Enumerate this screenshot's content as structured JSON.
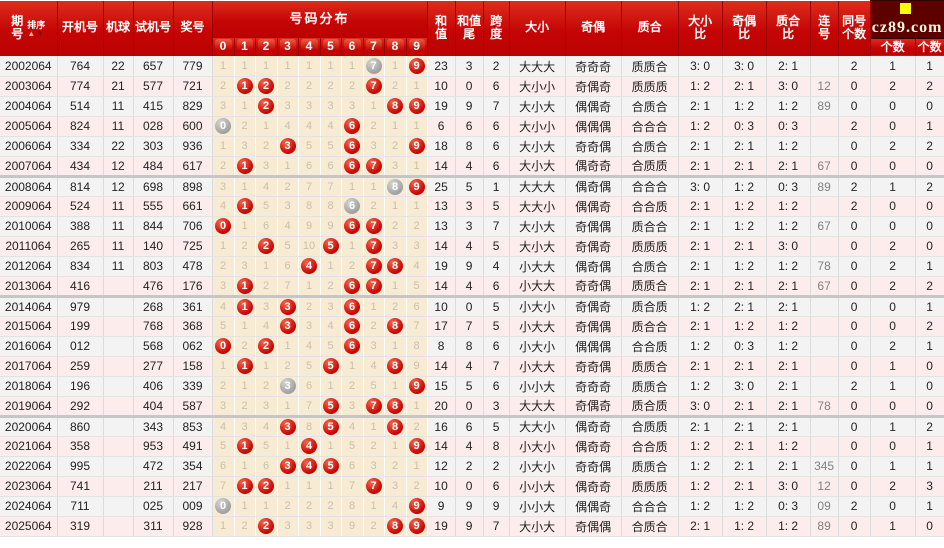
{
  "brand": {
    "logo_text": "cz89.com"
  },
  "colors": {
    "header_red": "#c50505",
    "stripe_gray": "#f3f3f3",
    "stripe_pink": "#fdecec",
    "dist_beige": "#f7ebd3",
    "ball_red": "#c90202",
    "ball_gray": "#a0a0a0",
    "logo_bg": "#5c0000",
    "logo_square": "#ffff00"
  },
  "header": {
    "qihao": [
      "期",
      "号"
    ],
    "sort_label": "排序",
    "sort_up_icon": "▲",
    "sort_down_icon": "▼",
    "kaijihao": "开机号",
    "jiqiu": "机球",
    "shijihao": "试机号",
    "jianghao": "奖号",
    "haoma_fenbu": "号码分布",
    "digits": [
      "0",
      "1",
      "2",
      "3",
      "4",
      "5",
      "6",
      "7",
      "8",
      "9"
    ],
    "hezhi": [
      "和",
      "值"
    ],
    "hezhiwei": [
      "和值",
      "尾"
    ],
    "kuadu": [
      "跨",
      "度"
    ],
    "daxiao": "大小",
    "jiou": "奇偶",
    "zhihe": "质合",
    "daxiaobi": [
      "大小",
      "比"
    ],
    "jioubi": [
      "奇偶",
      "比"
    ],
    "zhihebi": [
      "质合",
      "比"
    ],
    "lianhao": [
      "连",
      "号"
    ],
    "tonghao": [
      "同号",
      "个数"
    ],
    "geshu1": "个数",
    "geshu2": "个数"
  },
  "rows": [
    {
      "period": "2002064",
      "open": "764",
      "ball": "22",
      "test": "657",
      "win": "779",
      "dist": [
        "1",
        "1",
        "1",
        "1",
        "1",
        "1",
        "1",
        "G7",
        "1",
        "R9"
      ],
      "sum": "23",
      "sum_tail": "3",
      "span": "2",
      "size": "大大大",
      "parity": "奇奇奇",
      "prime": "质质合",
      "size_ratio": "3: 0",
      "parity_ratio": "3: 0",
      "prime_ratio": "2: 1",
      "consecutive": "",
      "same_count": "2",
      "count1": "1",
      "count2": "1",
      "group_end": false
    },
    {
      "period": "2003064",
      "open": "774",
      "ball": "21",
      "test": "577",
      "win": "721",
      "dist": [
        "2",
        "R1",
        "R2",
        "2",
        "2",
        "2",
        "2",
        "R7",
        "2",
        "1"
      ],
      "sum": "10",
      "sum_tail": "0",
      "span": "6",
      "size": "大小小",
      "parity": "奇偶奇",
      "prime": "质质质",
      "size_ratio": "1: 2",
      "parity_ratio": "2: 1",
      "prime_ratio": "3: 0",
      "consecutive": "12",
      "same_count": "0",
      "count1": "2",
      "count2": "2",
      "group_end": false
    },
    {
      "period": "2004064",
      "open": "514",
      "ball": "11",
      "test": "415",
      "win": "829",
      "dist": [
        "3",
        "1",
        "R2",
        "3",
        "3",
        "3",
        "3",
        "1",
        "R8",
        "R9"
      ],
      "sum": "19",
      "sum_tail": "9",
      "span": "7",
      "size": "大小大",
      "parity": "偶偶奇",
      "prime": "合质合",
      "size_ratio": "2: 1",
      "parity_ratio": "1: 2",
      "prime_ratio": "1: 2",
      "consecutive": "89",
      "same_count": "0",
      "count1": "0",
      "count2": "0",
      "group_end": false
    },
    {
      "period": "2005064",
      "open": "824",
      "ball": "11",
      "test": "028",
      "win": "600",
      "dist": [
        "G0",
        "2",
        "1",
        "4",
        "4",
        "4",
        "R6",
        "2",
        "1",
        "1"
      ],
      "sum": "6",
      "sum_tail": "6",
      "span": "6",
      "size": "大小小",
      "parity": "偶偶偶",
      "prime": "合合合",
      "size_ratio": "1: 2",
      "parity_ratio": "0: 3",
      "prime_ratio": "0: 3",
      "consecutive": "",
      "same_count": "2",
      "count1": "0",
      "count2": "1",
      "group_end": false
    },
    {
      "period": "2006064",
      "open": "334",
      "ball": "22",
      "test": "303",
      "win": "936",
      "dist": [
        "1",
        "3",
        "2",
        "R3",
        "5",
        "5",
        "R6",
        "3",
        "2",
        "R9"
      ],
      "sum": "18",
      "sum_tail": "8",
      "span": "6",
      "size": "大小大",
      "parity": "奇奇偶",
      "prime": "合质合",
      "size_ratio": "2: 1",
      "parity_ratio": "2: 1",
      "prime_ratio": "1: 2",
      "consecutive": "",
      "same_count": "0",
      "count1": "2",
      "count2": "2",
      "group_end": false
    },
    {
      "period": "2007064",
      "open": "434",
      "ball": "12",
      "test": "484",
      "win": "617",
      "dist": [
        "2",
        "R1",
        "3",
        "1",
        "6",
        "6",
        "R6",
        "R7",
        "3",
        "1"
      ],
      "sum": "14",
      "sum_tail": "4",
      "span": "6",
      "size": "大小大",
      "parity": "偶奇奇",
      "prime": "合质质",
      "size_ratio": "2: 1",
      "parity_ratio": "2: 1",
      "prime_ratio": "2: 1",
      "consecutive": "67",
      "same_count": "0",
      "count1": "0",
      "count2": "0",
      "group_end": true
    },
    {
      "period": "2008064",
      "open": "814",
      "ball": "12",
      "test": "698",
      "win": "898",
      "dist": [
        "3",
        "1",
        "4",
        "2",
        "7",
        "7",
        "1",
        "1",
        "G8",
        "R9"
      ],
      "sum": "25",
      "sum_tail": "5",
      "span": "1",
      "size": "大大大",
      "parity": "偶奇偶",
      "prime": "合合合",
      "size_ratio": "3: 0",
      "parity_ratio": "1: 2",
      "prime_ratio": "0: 3",
      "consecutive": "89",
      "same_count": "2",
      "count1": "1",
      "count2": "2",
      "group_end": false
    },
    {
      "period": "2009064",
      "open": "524",
      "ball": "11",
      "test": "555",
      "win": "661",
      "dist": [
        "4",
        "R1",
        "5",
        "3",
        "8",
        "8",
        "G6",
        "2",
        "1",
        "1"
      ],
      "sum": "13",
      "sum_tail": "3",
      "span": "5",
      "size": "大大小",
      "parity": "偶偶奇",
      "prime": "合合质",
      "size_ratio": "2: 1",
      "parity_ratio": "1: 2",
      "prime_ratio": "1: 2",
      "consecutive": "",
      "same_count": "2",
      "count1": "0",
      "count2": "0",
      "group_end": false
    },
    {
      "period": "2010064",
      "open": "388",
      "ball": "11",
      "test": "844",
      "win": "706",
      "dist": [
        "R0",
        "1",
        "6",
        "4",
        "9",
        "9",
        "R6",
        "R7",
        "2",
        "2"
      ],
      "sum": "13",
      "sum_tail": "3",
      "span": "7",
      "size": "大小大",
      "parity": "奇偶偶",
      "prime": "质合合",
      "size_ratio": "2: 1",
      "parity_ratio": "1: 2",
      "prime_ratio": "1: 2",
      "consecutive": "67",
      "same_count": "0",
      "count1": "0",
      "count2": "0",
      "group_end": false
    },
    {
      "period": "2011064",
      "open": "265",
      "ball": "11",
      "test": "140",
      "win": "725",
      "dist": [
        "1",
        "2",
        "R2",
        "5",
        "10",
        "R5",
        "1",
        "R7",
        "3",
        "3"
      ],
      "sum": "14",
      "sum_tail": "4",
      "span": "5",
      "size": "大小大",
      "parity": "奇偶奇",
      "prime": "质质质",
      "size_ratio": "2: 1",
      "parity_ratio": "2: 1",
      "prime_ratio": "3: 0",
      "consecutive": "",
      "same_count": "0",
      "count1": "2",
      "count2": "0",
      "group_end": false
    },
    {
      "period": "2012064",
      "open": "834",
      "ball": "11",
      "test": "803",
      "win": "478",
      "dist": [
        "2",
        "3",
        "1",
        "6",
        "R4",
        "1",
        "2",
        "R7",
        "R8",
        "4"
      ],
      "sum": "19",
      "sum_tail": "9",
      "span": "4",
      "size": "小大大",
      "parity": "偶奇偶",
      "prime": "合质合",
      "size_ratio": "2: 1",
      "parity_ratio": "1: 2",
      "prime_ratio": "1: 2",
      "consecutive": "78",
      "same_count": "0",
      "count1": "2",
      "count2": "1",
      "group_end": false
    },
    {
      "period": "2013064",
      "open": "416",
      "ball": "",
      "test": "476",
      "win": "176",
      "dist": [
        "3",
        "R1",
        "2",
        "7",
        "1",
        "2",
        "R6",
        "R7",
        "1",
        "5"
      ],
      "sum": "14",
      "sum_tail": "4",
      "span": "6",
      "size": "小大大",
      "parity": "奇奇偶",
      "prime": "质质合",
      "size_ratio": "2: 1",
      "parity_ratio": "2: 1",
      "prime_ratio": "2: 1",
      "consecutive": "67",
      "same_count": "0",
      "count1": "2",
      "count2": "2",
      "group_end": true
    },
    {
      "period": "2014064",
      "open": "979",
      "ball": "",
      "test": "268",
      "win": "361",
      "dist": [
        "4",
        "R1",
        "3",
        "R3",
        "2",
        "3",
        "R6",
        "1",
        "2",
        "6"
      ],
      "sum": "10",
      "sum_tail": "0",
      "span": "5",
      "size": "小大小",
      "parity": "奇偶奇",
      "prime": "质合质",
      "size_ratio": "1: 2",
      "parity_ratio": "2: 1",
      "prime_ratio": "2: 1",
      "consecutive": "",
      "same_count": "0",
      "count1": "0",
      "count2": "1",
      "group_end": false
    },
    {
      "period": "2015064",
      "open": "199",
      "ball": "",
      "test": "768",
      "win": "368",
      "dist": [
        "5",
        "1",
        "4",
        "R3",
        "3",
        "4",
        "R6",
        "2",
        "R8",
        "7"
      ],
      "sum": "17",
      "sum_tail": "7",
      "span": "5",
      "size": "小大大",
      "parity": "奇偶偶",
      "prime": "质合合",
      "size_ratio": "2: 1",
      "parity_ratio": "1: 2",
      "prime_ratio": "1: 2",
      "consecutive": "",
      "same_count": "0",
      "count1": "0",
      "count2": "2",
      "group_end": false
    },
    {
      "period": "2016064",
      "open": "012",
      "ball": "",
      "test": "568",
      "win": "062",
      "dist": [
        "R0",
        "2",
        "R2",
        "1",
        "4",
        "5",
        "R6",
        "3",
        "1",
        "8"
      ],
      "sum": "8",
      "sum_tail": "8",
      "span": "6",
      "size": "小大小",
      "parity": "偶偶偶",
      "prime": "合合质",
      "size_ratio": "1: 2",
      "parity_ratio": "0: 3",
      "prime_ratio": "1: 2",
      "consecutive": "",
      "same_count": "0",
      "count1": "2",
      "count2": "1",
      "group_end": false
    },
    {
      "period": "2017064",
      "open": "259",
      "ball": "",
      "test": "277",
      "win": "158",
      "dist": [
        "1",
        "R1",
        "1",
        "2",
        "5",
        "R5",
        "1",
        "4",
        "R8",
        "9"
      ],
      "sum": "14",
      "sum_tail": "4",
      "span": "7",
      "size": "小大大",
      "parity": "奇奇偶",
      "prime": "质质合",
      "size_ratio": "2: 1",
      "parity_ratio": "2: 1",
      "prime_ratio": "2: 1",
      "consecutive": "",
      "same_count": "0",
      "count1": "1",
      "count2": "0",
      "group_end": false
    },
    {
      "period": "2018064",
      "open": "196",
      "ball": "",
      "test": "406",
      "win": "339",
      "dist": [
        "2",
        "1",
        "2",
        "G3",
        "6",
        "1",
        "2",
        "5",
        "1",
        "R9"
      ],
      "sum": "15",
      "sum_tail": "5",
      "span": "6",
      "size": "小小大",
      "parity": "奇奇奇",
      "prime": "质质合",
      "size_ratio": "1: 2",
      "parity_ratio": "3: 0",
      "prime_ratio": "2: 1",
      "consecutive": "",
      "same_count": "2",
      "count1": "1",
      "count2": "0",
      "group_end": false
    },
    {
      "period": "2019064",
      "open": "292",
      "ball": "",
      "test": "404",
      "win": "587",
      "dist": [
        "3",
        "2",
        "3",
        "1",
        "7",
        "R5",
        "3",
        "R7",
        "R8",
        "1"
      ],
      "sum": "20",
      "sum_tail": "0",
      "span": "3",
      "size": "大大大",
      "parity": "奇偶奇",
      "prime": "质合质",
      "size_ratio": "3: 0",
      "parity_ratio": "2: 1",
      "prime_ratio": "2: 1",
      "consecutive": "78",
      "same_count": "0",
      "count1": "0",
      "count2": "0",
      "group_end": true
    },
    {
      "period": "2020064",
      "open": "860",
      "ball": "",
      "test": "343",
      "win": "853",
      "dist": [
        "4",
        "3",
        "4",
        "R3",
        "8",
        "R5",
        "4",
        "1",
        "R8",
        "2"
      ],
      "sum": "16",
      "sum_tail": "6",
      "span": "5",
      "size": "大大小",
      "parity": "偶奇奇",
      "prime": "合质质",
      "size_ratio": "2: 1",
      "parity_ratio": "2: 1",
      "prime_ratio": "2: 1",
      "consecutive": "",
      "same_count": "0",
      "count1": "1",
      "count2": "2",
      "group_end": false
    },
    {
      "period": "2021064",
      "open": "358",
      "ball": "",
      "test": "953",
      "win": "491",
      "dist": [
        "5",
        "R1",
        "5",
        "1",
        "R4",
        "1",
        "5",
        "2",
        "1",
        "R9"
      ],
      "sum": "14",
      "sum_tail": "4",
      "span": "8",
      "size": "小大小",
      "parity": "偶奇奇",
      "prime": "合合质",
      "size_ratio": "1: 2",
      "parity_ratio": "2: 1",
      "prime_ratio": "1: 2",
      "consecutive": "",
      "same_count": "0",
      "count1": "0",
      "count2": "1",
      "group_end": false
    },
    {
      "period": "2022064",
      "open": "995",
      "ball": "",
      "test": "472",
      "win": "354",
      "dist": [
        "6",
        "1",
        "6",
        "R3",
        "R4",
        "R5",
        "6",
        "3",
        "2",
        "1"
      ],
      "sum": "12",
      "sum_tail": "2",
      "span": "2",
      "size": "小大小",
      "parity": "奇奇偶",
      "prime": "质质合",
      "size_ratio": "1: 2",
      "parity_ratio": "2: 1",
      "prime_ratio": "2: 1",
      "consecutive": "345",
      "same_count": "0",
      "count1": "1",
      "count2": "1",
      "group_end": false
    },
    {
      "period": "2023064",
      "open": "741",
      "ball": "",
      "test": "211",
      "win": "217",
      "dist": [
        "7",
        "R1",
        "R2",
        "1",
        "1",
        "1",
        "7",
        "R7",
        "3",
        "2"
      ],
      "sum": "10",
      "sum_tail": "0",
      "span": "6",
      "size": "小小大",
      "parity": "偶奇奇",
      "prime": "质质质",
      "size_ratio": "1: 2",
      "parity_ratio": "2: 1",
      "prime_ratio": "3: 0",
      "consecutive": "12",
      "same_count": "0",
      "count1": "2",
      "count2": "3",
      "group_end": false
    },
    {
      "period": "2024064",
      "open": "711",
      "ball": "",
      "test": "025",
      "win": "009",
      "dist": [
        "G0",
        "1",
        "1",
        "2",
        "2",
        "2",
        "8",
        "1",
        "4",
        "R9"
      ],
      "sum": "9",
      "sum_tail": "9",
      "span": "9",
      "size": "小小大",
      "parity": "偶偶奇",
      "prime": "合合合",
      "size_ratio": "1: 2",
      "parity_ratio": "1: 2",
      "prime_ratio": "0: 3",
      "consecutive": "09",
      "same_count": "2",
      "count1": "0",
      "count2": "1",
      "group_end": false
    },
    {
      "period": "2025064",
      "open": "319",
      "ball": "",
      "test": "311",
      "win": "928",
      "dist": [
        "1",
        "2",
        "R2",
        "3",
        "3",
        "3",
        "9",
        "2",
        "R8",
        "R9"
      ],
      "sum": "19",
      "sum_tail": "9",
      "span": "7",
      "size": "大小大",
      "parity": "奇偶偶",
      "prime": "合质合",
      "size_ratio": "2: 1",
      "parity_ratio": "1: 2",
      "prime_ratio": "1: 2",
      "consecutive": "89",
      "same_count": "0",
      "count1": "1",
      "count2": "0",
      "group_end": false
    }
  ]
}
